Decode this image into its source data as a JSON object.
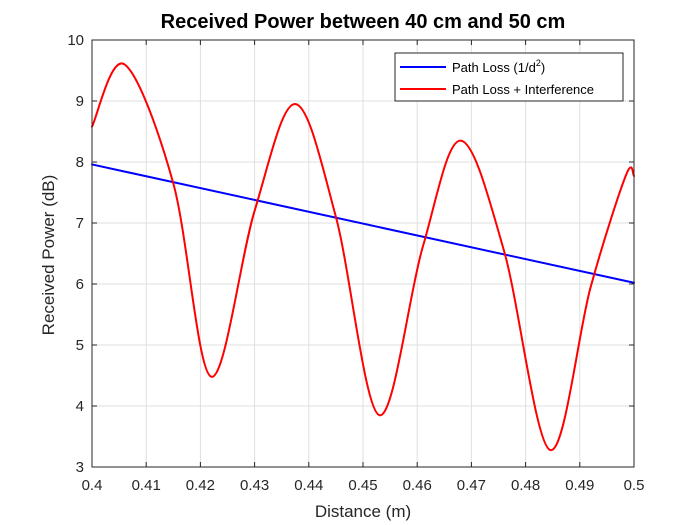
{
  "chart_data": {
    "type": "line",
    "title": "Received Power between 40 cm and 50 cm",
    "xlabel": "Distance (m)",
    "ylabel": "Received Power (dB)",
    "xlim": [
      0.4,
      0.5
    ],
    "ylim": [
      3,
      10
    ],
    "xticks": [
      "0.4",
      "0.41",
      "0.42",
      "0.43",
      "0.44",
      "0.45",
      "0.46",
      "0.47",
      "0.48",
      "0.49",
      "0.5"
    ],
    "yticks": [
      "3",
      "4",
      "5",
      "6",
      "7",
      "8",
      "9",
      "10"
    ],
    "grid": true,
    "legend_position": "top-right",
    "legend": {
      "pathloss_prefix": "Path Loss (1/d",
      "pathloss_sup": "2",
      "pathloss_suffix": ")",
      "interference": "Path Loss + Interference"
    },
    "series": [
      {
        "name": "Path Loss (1/d2)",
        "color": "#0000ff",
        "x": [
          0.4,
          0.5
        ],
        "y": [
          7.96,
          6.02
        ]
      },
      {
        "name": "Path Loss + Interference",
        "color": "#ff0000",
        "x": [
          0.4,
          0.406,
          0.415,
          0.422,
          0.43,
          0.4375,
          0.445,
          0.453,
          0.461,
          0.468,
          0.476,
          0.4845,
          0.492,
          0.4985,
          0.5
        ],
        "y": [
          8.58,
          9.6,
          7.65,
          4.48,
          7.2,
          8.95,
          7.1,
          3.85,
          6.6,
          8.35,
          6.55,
          3.28,
          5.95,
          7.78,
          7.77
        ]
      }
    ]
  }
}
